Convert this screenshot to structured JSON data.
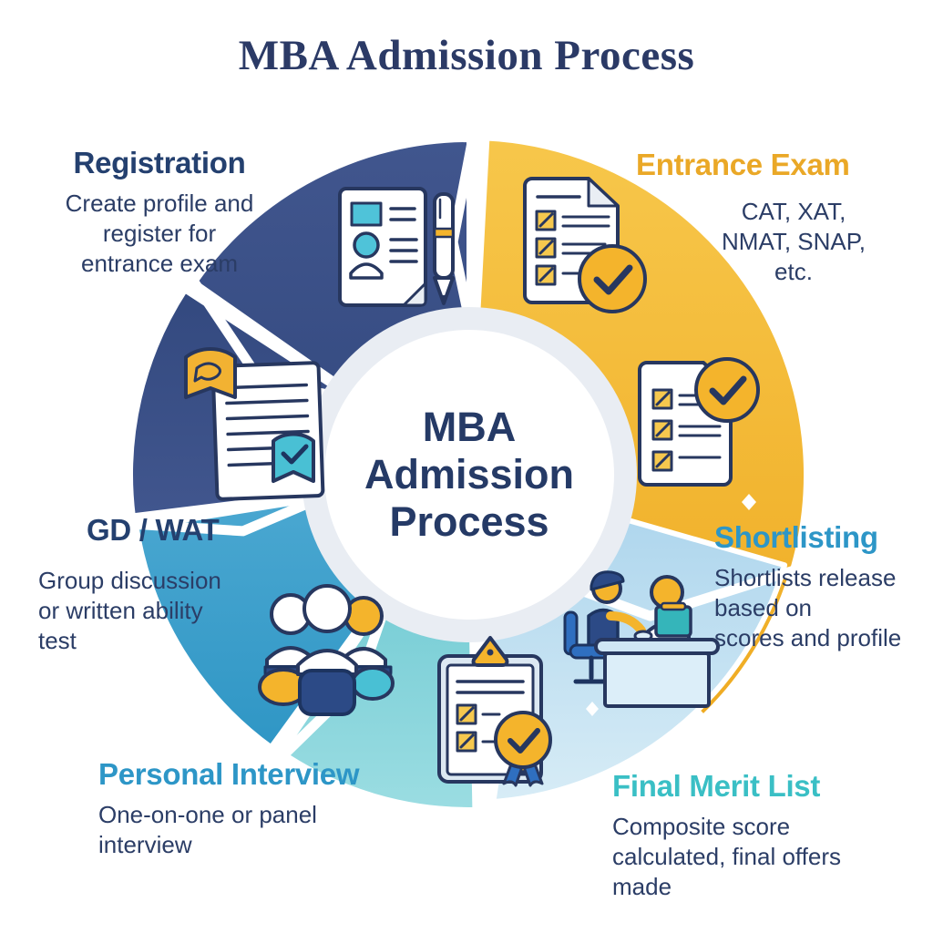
{
  "title": "MBA Admission Process",
  "center_label": {
    "line1": "MBA",
    "line2": "Admission",
    "line3": "Process"
  },
  "colors": {
    "title_text": "#2b3a66",
    "body_text": "#2b3d66",
    "navy": "#33497f",
    "navy_light": "#41568e",
    "yellow": "#efab22",
    "yellow_light": "#f7c74b",
    "light_blue": "#a9d3ec",
    "light_blue_pale": "#d7ecf6",
    "teal": "#63c4ce",
    "teal_light": "#9bdde2",
    "medium_blue": "#2f96c5",
    "medium_blue_light": "#4da9d2",
    "ring": "#e9edf3",
    "center_bg": "#ffffff",
    "icon_outline": "#27375f"
  },
  "steps": [
    {
      "heading": "Registration",
      "heading_color": "#24406f",
      "desc_lines": [
        "Create profile and",
        "register for",
        "entrance exam"
      ],
      "icon": "profile-document-pen-icon"
    },
    {
      "heading": "Entrance Exam",
      "heading_color": "#eaa827",
      "desc_lines": [
        "CAT, XAT,",
        "NMAT, SNAP,",
        "etc."
      ],
      "icon": "exam-checklist-icon"
    },
    {
      "heading": "Shortlisting",
      "heading_color": "#2d96c7",
      "desc_lines": [
        "Shortlists release",
        "based on",
        "scores and profile"
      ],
      "icon": "shortlist-checklist-icon"
    },
    {
      "heading": "Final Merit List",
      "heading_color": "#3abfc5",
      "desc_lines": [
        "Composite score",
        "calculated, final offers",
        "made"
      ],
      "icon": "clipboard-medal-icon"
    },
    {
      "heading": "Personal Interview",
      "heading_color": "#2d96c7",
      "desc_lines": [
        "One-on-one or panel",
        "interview"
      ],
      "icon": "people-group-icon"
    },
    {
      "heading": "GD / WAT",
      "heading_color": "#24406f",
      "desc_lines": [
        "Group discussion",
        "or written ability",
        "test"
      ],
      "icon": "document-discussion-icon"
    }
  ]
}
